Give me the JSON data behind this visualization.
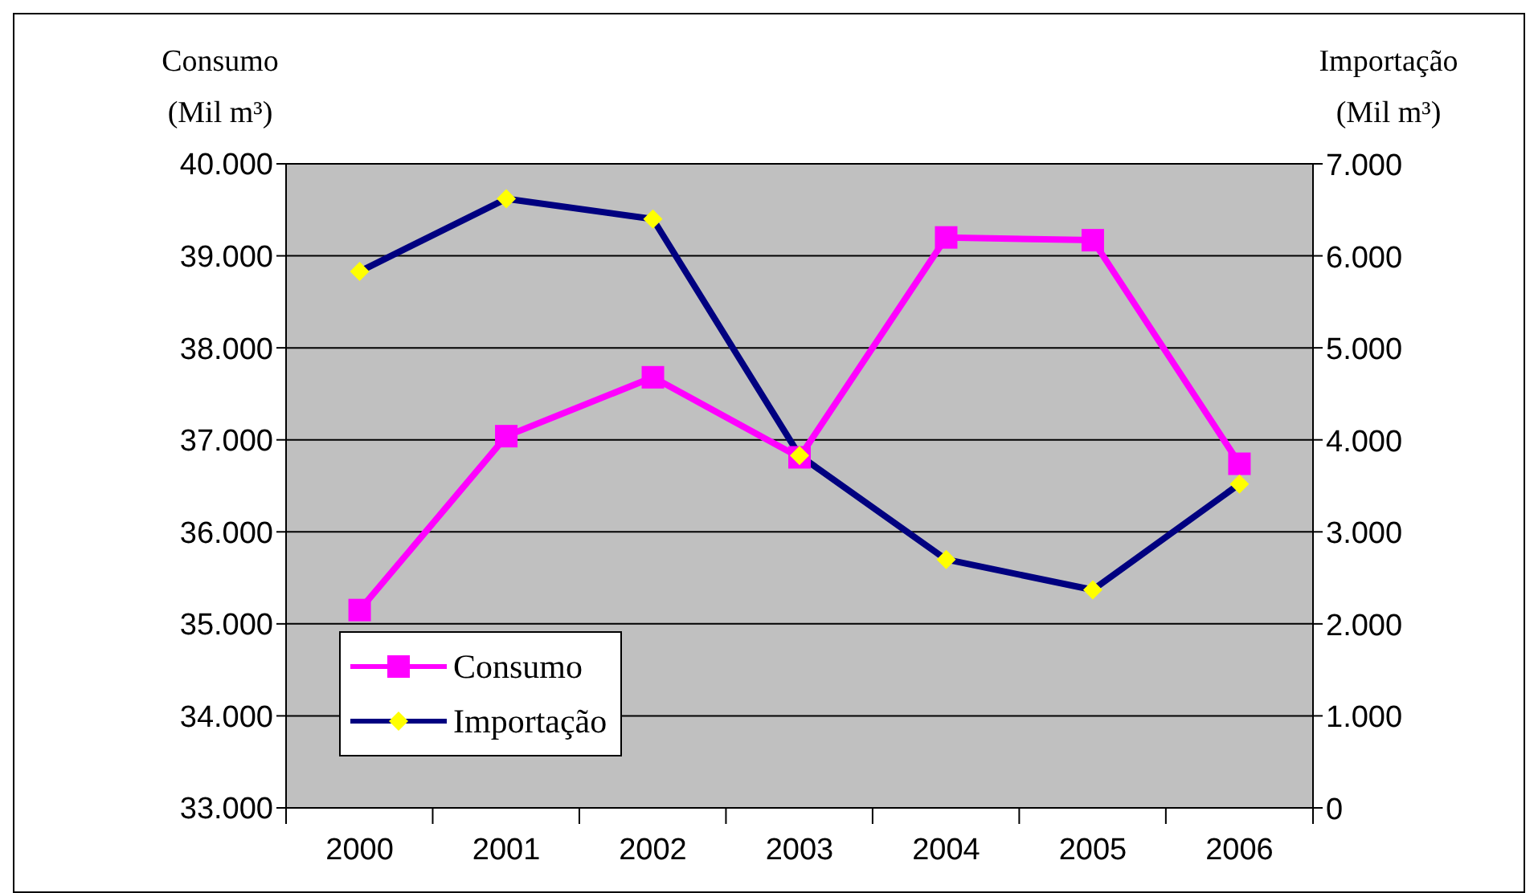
{
  "chart_data": {
    "type": "line",
    "ylabel": "Consumo\n(Mil m³)",
    "y2label": "Importação\n(Mil m³)",
    "categories": [
      "2000",
      "2001",
      "2002",
      "2003",
      "2004",
      "2005",
      "2006"
    ],
    "series": [
      {
        "name": "Consumo",
        "color": "#ff00ff",
        "marker": "square",
        "values": [
          35150,
          37040,
          37680,
          36810,
          39200,
          39170,
          36740
        ]
      },
      {
        "name": "Importação",
        "color": "#000080",
        "marker": "diamond",
        "axis": "y2",
        "values": [
          5830,
          6620,
          6400,
          3830,
          2700,
          2370,
          3520
        ]
      }
    ],
    "ylim": [
      33000,
      40000
    ],
    "yticks": [
      {
        "value": 33000,
        "label": "33.000"
      },
      {
        "value": 34000,
        "label": "34.000"
      },
      {
        "value": 35000,
        "label": "35.000"
      },
      {
        "value": 36000,
        "label": "36.000"
      },
      {
        "value": 37000,
        "label": "37.000"
      },
      {
        "value": 38000,
        "label": "38.000"
      },
      {
        "value": 39000,
        "label": "39.000"
      },
      {
        "value": 40000,
        "label": "40.000"
      }
    ],
    "y2lim": [
      0,
      7000
    ],
    "y2ticks": [
      0,
      {
        "value": 1000,
        "label": "1.000"
      },
      {
        "value": 2000,
        "label": "2.000"
      },
      {
        "value": 3000,
        "label": "3.000"
      },
      {
        "value": 4000,
        "label": "4.000"
      },
      {
        "value": 5000,
        "label": "5.000"
      },
      {
        "value": 6000,
        "label": "6.000"
      },
      {
        "value": 7000,
        "label": "7.000"
      }
    ],
    "grid": "y",
    "legend": "bottom left"
  }
}
